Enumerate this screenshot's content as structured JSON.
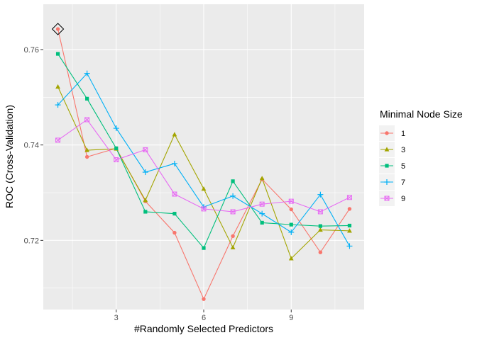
{
  "chart_data": {
    "type": "line",
    "xlabel": "#Randomly Selected Predictors",
    "ylabel": "ROC (Cross-Validation)",
    "xlim": [
      0.5,
      11.5
    ],
    "ylim": [
      0.7055,
      0.7695
    ],
    "x_ticks": [
      3,
      6,
      9
    ],
    "x_tick_labels": [
      "3",
      "6",
      "9"
    ],
    "y_ticks": [
      0.72,
      0.74,
      0.76
    ],
    "y_tick_labels": [
      "0.72",
      "0.74",
      "0.76"
    ],
    "x_minor_ticks": [
      1.5,
      4.5,
      7.5,
      10.5
    ],
    "y_minor_ticks": [
      0.71,
      0.73,
      0.75
    ],
    "grid": true,
    "legend_title": "Minimal Node Size",
    "legend_position": "right",
    "x": [
      1,
      2,
      3,
      4,
      5,
      6,
      7,
      8,
      9,
      10,
      11
    ],
    "series": [
      {
        "name": "1",
        "color": "#F8766D",
        "marker": "circle",
        "values": [
          0.7643,
          0.7375,
          0.7393,
          0.7282,
          0.7216,
          0.7077,
          0.7209,
          0.7328,
          0.7265,
          0.7175,
          0.7266
        ]
      },
      {
        "name": "3",
        "color": "#A3A500",
        "marker": "triangle",
        "values": [
          0.7522,
          0.7389,
          0.7392,
          0.7284,
          0.7422,
          0.7308,
          0.7185,
          0.733,
          0.7162,
          0.7222,
          0.722
        ]
      },
      {
        "name": "5",
        "color": "#00BF7D",
        "marker": "square",
        "values": [
          0.7591,
          0.7497,
          0.7393,
          0.726,
          0.7256,
          0.7184,
          0.7324,
          0.7237,
          0.7233,
          0.723,
          0.7231
        ]
      },
      {
        "name": "7",
        "color": "#00B0F6",
        "marker": "plus",
        "values": [
          0.7484,
          0.755,
          0.7435,
          0.7343,
          0.7361,
          0.727,
          0.7293,
          0.7256,
          0.7217,
          0.7296,
          0.7188
        ]
      },
      {
        "name": "9",
        "color": "#E76BF3",
        "marker": "boxcross",
        "values": [
          0.741,
          0.7453,
          0.7369,
          0.739,
          0.7297,
          0.7266,
          0.726,
          0.7276,
          0.7282,
          0.726,
          0.729
        ]
      }
    ],
    "highlight": {
      "x": 1,
      "y": 0.7643,
      "marker": "diamond",
      "color": "#000000"
    }
  }
}
